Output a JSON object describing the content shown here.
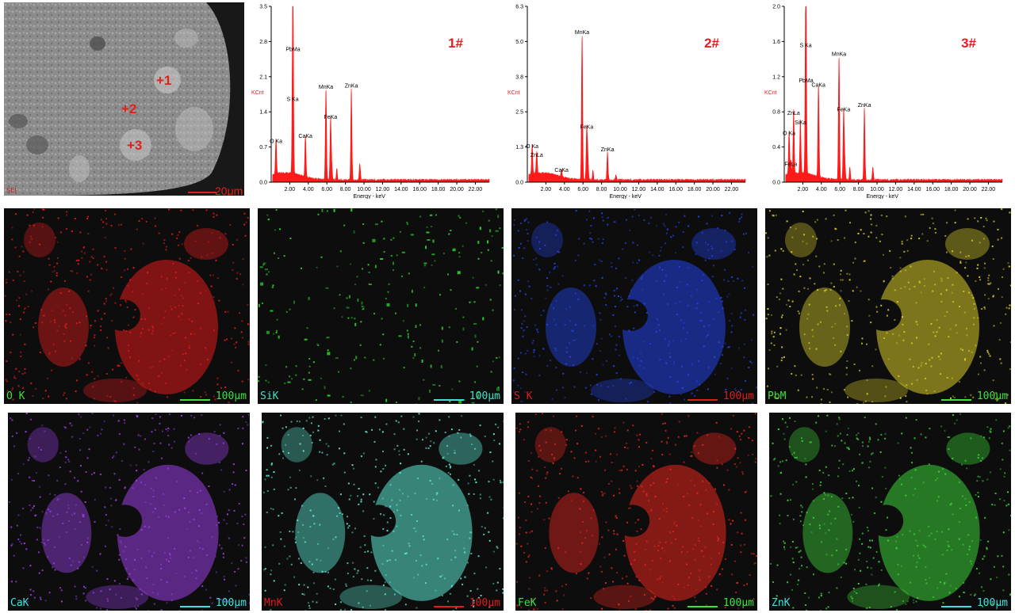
{
  "sem_image": {
    "points": [
      {
        "label": "+1"
      },
      {
        "label": "+2"
      },
      {
        "label": "+3"
      }
    ],
    "scale_text": "20μm",
    "corner_text": "SEI",
    "marker_color": "#e0201b"
  },
  "chart_data": [
    {
      "type": "line",
      "id": "spectrum-1",
      "title": "1#",
      "xlabel": "Energy - keV",
      "ylabel": "KCnt",
      "xlim": [
        0,
        23.5
      ],
      "ylim": [
        0,
        3.5
      ],
      "xticks": [
        "2.00",
        "4.00",
        "6.00",
        "8.00",
        "10.00",
        "12.00",
        "14.00",
        "16.00",
        "18.00",
        "20.00",
        "22.00"
      ],
      "yticks": [
        "0.0",
        "0.7",
        "1.4",
        "2.1",
        "2.8",
        "3.5"
      ],
      "peaks": [
        {
          "label": "O Ka",
          "x": 0.52,
          "y": 0.72
        },
        {
          "label": "S Ka",
          "x": 2.31,
          "y": 1.55
        },
        {
          "label": "PbMa",
          "x": 2.35,
          "y": 2.55
        },
        {
          "label": "CaKa",
          "x": 3.69,
          "y": 0.82
        },
        {
          "label": "MnKa",
          "x": 5.9,
          "y": 1.8
        },
        {
          "label": "FeKa",
          "x": 6.4,
          "y": 1.2
        },
        {
          "label": "ZnKa",
          "x": 8.64,
          "y": 1.82
        }
      ],
      "color": "#ff1a1a"
    },
    {
      "type": "line",
      "id": "spectrum-2",
      "title": "2#",
      "xlabel": "Energy - keV",
      "ylabel": "KCnt",
      "xlim": [
        0,
        23.5
      ],
      "ylim": [
        0,
        6.3
      ],
      "xticks": [
        "2.00",
        "4.00",
        "6.00",
        "8.00",
        "10.00",
        "12.00",
        "14.00",
        "16.00",
        "18.00",
        "20.00",
        "22.00"
      ],
      "yticks": [
        "0.0",
        "1.3",
        "2.5",
        "3.8",
        "5.0",
        "6.3"
      ],
      "peaks": [
        {
          "label": "O Ka",
          "x": 0.52,
          "y": 1.1
        },
        {
          "label": "ZnLa",
          "x": 1.01,
          "y": 0.8
        },
        {
          "label": "CaKa",
          "x": 3.69,
          "y": 0.25
        },
        {
          "label": "MnKa",
          "x": 5.9,
          "y": 5.2
        },
        {
          "label": "FeKa",
          "x": 6.4,
          "y": 1.8
        },
        {
          "label": "ZnKa",
          "x": 8.64,
          "y": 1.0
        }
      ],
      "color": "#ff1a1a"
    },
    {
      "type": "line",
      "id": "spectrum-3",
      "title": "3#",
      "xlabel": "Energy - keV",
      "ylabel": "KCnt",
      "xlim": [
        0,
        23.5
      ],
      "ylim": [
        0,
        2.0
      ],
      "xticks": [
        "2.00",
        "4.00",
        "6.00",
        "8.00",
        "10.00",
        "12.00",
        "14.00",
        "16.00",
        "18.00",
        "20.00",
        "22.00"
      ],
      "yticks": [
        "0.0",
        "0.4",
        "0.8",
        "1.2",
        "1.6",
        "2.0"
      ],
      "peaks": [
        {
          "label": "O Ka",
          "x": 0.52,
          "y": 0.5
        },
        {
          "label": "FeLa",
          "x": 0.71,
          "y": 0.15
        },
        {
          "label": "ZnLa",
          "x": 1.01,
          "y": 0.73
        },
        {
          "label": "SiKa",
          "x": 1.74,
          "y": 0.62
        },
        {
          "label": "S Ka",
          "x": 2.31,
          "y": 1.5
        },
        {
          "label": "PbMa",
          "x": 2.35,
          "y": 1.1
        },
        {
          "label": "CaKa",
          "x": 3.69,
          "y": 1.05
        },
        {
          "label": "MnKa",
          "x": 5.9,
          "y": 1.4
        },
        {
          "label": "FeKa",
          "x": 6.4,
          "y": 0.77
        },
        {
          "label": "ZnKa",
          "x": 8.64,
          "y": 0.82
        }
      ],
      "color": "#ff1a1a"
    }
  ],
  "maps": [
    {
      "label": "O  K",
      "scale": "100μm",
      "color": "#e01c1c",
      "label_color": "#3be33b",
      "scale_color": "#3be33b",
      "bar_color": "#3be33b"
    },
    {
      "label": "SiK",
      "scale": "100μm",
      "color": "#2cd22c",
      "label_color": "#3ee2c8",
      "scale_color": "#3ee2c8",
      "bar_color": "#3ee2c8"
    },
    {
      "label": "S  K",
      "scale": "100μm",
      "color": "#2444e8",
      "label_color": "#e01c1c",
      "scale_color": "#e01c1c",
      "bar_color": "#e01c1c"
    },
    {
      "label": "PbM",
      "scale": "100μm",
      "color": "#d8cc2a",
      "label_color": "#3be33b",
      "scale_color": "#3be33b",
      "bar_color": "#3be33b"
    },
    {
      "label": "CaK",
      "scale": "100μm",
      "color": "#9a40e6",
      "label_color": "#3ee2e2",
      "scale_color": "#3ee2e2",
      "bar_color": "#3ee2e2"
    },
    {
      "label": "MnK",
      "scale": "100μm",
      "color": "#5ee8d2",
      "label_color": "#e01c1c",
      "scale_color": "#e01c1c",
      "bar_color": "#e01c1c"
    },
    {
      "label": "FeK",
      "scale": "100μm",
      "color": "#e8261e",
      "label_color": "#3be33b",
      "scale_color": "#3be33b",
      "bar_color": "#3be33b"
    },
    {
      "label": "ZnK",
      "scale": "100μm",
      "color": "#3ed23a",
      "label_color": "#3ee2e2",
      "scale_color": "#3ee2e2",
      "bar_color": "#3ee2e2"
    }
  ]
}
